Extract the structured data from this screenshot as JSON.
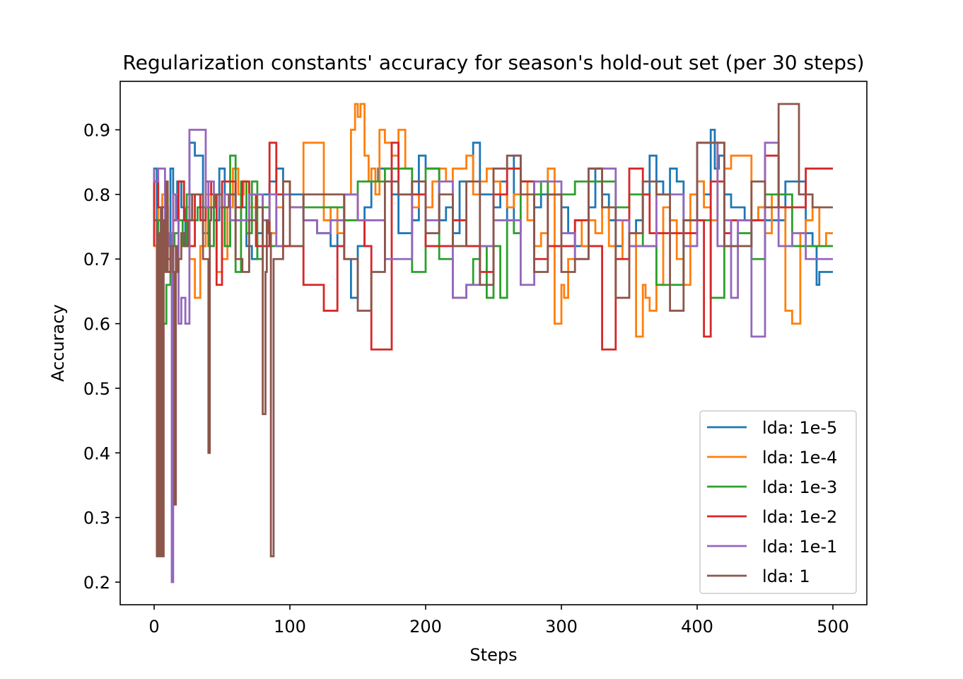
{
  "chart_data": {
    "type": "line",
    "title": "Regularization constants' accuracy for season's hold-out set (per 30 steps)",
    "xlabel": "Steps",
    "ylabel": "Accuracy",
    "xlim": [
      -25,
      525
    ],
    "ylim": [
      0.165,
      0.975
    ],
    "xticks": [
      0,
      100,
      200,
      300,
      400,
      500
    ],
    "yticks": [
      0.2,
      0.3,
      0.4,
      0.5,
      0.6,
      0.7,
      0.8,
      0.9
    ],
    "x_tick_labels": [
      "0",
      "100",
      "200",
      "300",
      "400",
      "500"
    ],
    "y_tick_labels": [
      "0.2",
      "0.3",
      "0.4",
      "0.5",
      "0.6",
      "0.7",
      "0.8",
      "0.9"
    ],
    "grid": false,
    "legend_position": "lower right",
    "series": [
      {
        "name": "lda: 1e-5",
        "color": "#1f77b4",
        "x": [
          0,
          2,
          5,
          8,
          10,
          12,
          14,
          17,
          20,
          23,
          26,
          30,
          32,
          36,
          40,
          44,
          48,
          52,
          56,
          60,
          64,
          68,
          72,
          76,
          80,
          85,
          90,
          95,
          100,
          110,
          120,
          130,
          135,
          140,
          145,
          150,
          155,
          160,
          165,
          170,
          175,
          180,
          185,
          190,
          195,
          200,
          205,
          210,
          215,
          220,
          225,
          230,
          235,
          240,
          245,
          250,
          255,
          260,
          265,
          270,
          275,
          280,
          285,
          290,
          295,
          300,
          305,
          310,
          315,
          320,
          325,
          330,
          335,
          340,
          345,
          350,
          355,
          360,
          365,
          370,
          375,
          380,
          385,
          390,
          395,
          400,
          405,
          410,
          413,
          416,
          420,
          425,
          430,
          435,
          440,
          445,
          450,
          455,
          460,
          465,
          470,
          475,
          480,
          485,
          488,
          490,
          495,
          500
        ],
        "values": [
          0.76,
          0.84,
          0.76,
          0.74,
          0.78,
          0.72,
          0.84,
          0.76,
          0.82,
          0.78,
          0.72,
          0.88,
          0.86,
          0.86,
          0.74,
          0.78,
          0.76,
          0.84,
          0.72,
          0.8,
          0.76,
          0.78,
          0.72,
          0.7,
          0.74,
          0.8,
          0.82,
          0.84,
          0.82,
          0.8,
          0.76,
          0.74,
          0.72,
          0.76,
          0.7,
          0.64,
          0.72,
          0.78,
          0.82,
          0.84,
          0.84,
          0.8,
          0.74,
          0.74,
          0.76,
          0.86,
          0.84,
          0.84,
          0.76,
          0.78,
          0.74,
          0.82,
          0.82,
          0.88,
          0.8,
          0.8,
          0.78,
          0.82,
          0.76,
          0.86,
          0.82,
          0.82,
          0.78,
          0.8,
          0.8,
          0.8,
          0.78,
          0.74,
          0.72,
          0.72,
          0.78,
          0.84,
          0.8,
          0.76,
          0.72,
          0.76,
          0.72,
          0.76,
          0.8,
          0.86,
          0.82,
          0.8,
          0.84,
          0.82,
          0.76,
          0.76,
          0.82,
          0.8,
          0.9,
          0.84,
          0.86,
          0.8,
          0.78,
          0.78,
          0.76,
          0.76,
          0.78,
          0.76,
          0.76,
          0.76,
          0.82,
          0.82,
          0.82,
          0.74,
          0.72,
          0.66,
          0.68,
          0.68
        ]
      },
      {
        "name": "lda: 1e-4",
        "color": "#ff7f0e",
        "x": [
          0,
          3,
          6,
          10,
          14,
          18,
          22,
          26,
          30,
          34,
          38,
          42,
          46,
          50,
          54,
          58,
          62,
          66,
          70,
          75,
          80,
          85,
          90,
          95,
          100,
          110,
          120,
          125,
          130,
          135,
          140,
          145,
          148,
          150,
          152,
          155,
          158,
          160,
          163,
          166,
          170,
          175,
          180,
          185,
          190,
          195,
          200,
          205,
          210,
          215,
          220,
          225,
          230,
          235,
          240,
          245,
          250,
          255,
          260,
          265,
          270,
          275,
          280,
          285,
          290,
          295,
          300,
          302,
          305,
          310,
          315,
          320,
          325,
          330,
          335,
          340,
          345,
          350,
          355,
          360,
          362,
          365,
          370,
          375,
          380,
          385,
          390,
          395,
          400,
          405,
          410,
          415,
          420,
          425,
          430,
          435,
          440,
          445,
          450,
          455,
          460,
          465,
          470,
          473,
          476,
          480,
          485,
          490,
          495,
          500
        ],
        "values": [
          0.76,
          0.72,
          0.78,
          0.8,
          0.72,
          0.8,
          0.82,
          0.78,
          0.7,
          0.64,
          0.72,
          0.8,
          0.78,
          0.68,
          0.7,
          0.78,
          0.84,
          0.8,
          0.82,
          0.78,
          0.8,
          0.76,
          0.74,
          0.78,
          0.82,
          0.78,
          0.88,
          0.88,
          0.76,
          0.78,
          0.74,
          0.8,
          0.9,
          0.94,
          0.92,
          0.94,
          0.86,
          0.82,
          0.84,
          0.8,
          0.9,
          0.88,
          0.86,
          0.9,
          0.84,
          0.78,
          0.8,
          0.78,
          0.82,
          0.84,
          0.82,
          0.84,
          0.84,
          0.86,
          0.8,
          0.82,
          0.84,
          0.82,
          0.8,
          0.78,
          0.8,
          0.82,
          0.76,
          0.72,
          0.74,
          0.84,
          0.6,
          0.66,
          0.64,
          0.7,
          0.76,
          0.72,
          0.76,
          0.74,
          0.78,
          0.72,
          0.7,
          0.76,
          0.74,
          0.58,
          0.66,
          0.64,
          0.62,
          0.66,
          0.78,
          0.76,
          0.7,
          0.66,
          0.8,
          0.82,
          0.78,
          0.76,
          0.88,
          0.84,
          0.86,
          0.86,
          0.86,
          0.76,
          0.78,
          0.74,
          0.8,
          0.78,
          0.62,
          0.6,
          0.6,
          0.74,
          0.76,
          0.78,
          0.72,
          0.74
        ]
      },
      {
        "name": "lda: 1e-3",
        "color": "#2ca02c",
        "x": [
          0,
          3,
          6,
          9,
          12,
          15,
          18,
          21,
          24,
          28,
          32,
          36,
          40,
          44,
          48,
          52,
          56,
          60,
          64,
          68,
          72,
          76,
          80,
          85,
          90,
          95,
          100,
          110,
          120,
          130,
          140,
          150,
          160,
          170,
          180,
          190,
          200,
          210,
          220,
          230,
          235,
          240,
          245,
          250,
          255,
          260,
          265,
          270,
          275,
          280,
          285,
          290,
          300,
          310,
          320,
          330,
          340,
          350,
          360,
          370,
          380,
          390,
          400,
          410,
          420,
          430,
          440,
          450,
          460,
          470,
          480,
          490,
          500
        ],
        "values": [
          0.84,
          0.76,
          0.72,
          0.6,
          0.66,
          0.72,
          0.74,
          0.76,
          0.72,
          0.8,
          0.76,
          0.78,
          0.78,
          0.72,
          0.8,
          0.78,
          0.72,
          0.86,
          0.68,
          0.82,
          0.74,
          0.82,
          0.7,
          0.78,
          0.72,
          0.72,
          0.8,
          0.78,
          0.78,
          0.78,
          0.78,
          0.76,
          0.82,
          0.82,
          0.84,
          0.84,
          0.68,
          0.84,
          0.7,
          0.64,
          0.66,
          0.7,
          0.72,
          0.64,
          0.72,
          0.64,
          0.76,
          0.74,
          0.82,
          0.82,
          0.8,
          0.82,
          0.8,
          0.8,
          0.82,
          0.82,
          0.82,
          0.78,
          0.8,
          0.72,
          0.66,
          0.66,
          0.76,
          0.76,
          0.64,
          0.72,
          0.74,
          0.7,
          0.8,
          0.8,
          0.72,
          0.72,
          0.72
        ]
      },
      {
        "name": "lda: 1e-2",
        "color": "#d62728",
        "x": [
          0,
          3,
          6,
          10,
          14,
          18,
          22,
          26,
          30,
          34,
          38,
          42,
          46,
          50,
          55,
          60,
          65,
          70,
          75,
          80,
          85,
          90,
          95,
          100,
          110,
          120,
          125,
          130,
          135,
          140,
          145,
          150,
          155,
          160,
          170,
          175,
          180,
          190,
          200,
          210,
          220,
          230,
          240,
          250,
          260,
          270,
          280,
          290,
          300,
          310,
          320,
          330,
          340,
          350,
          360,
          365,
          370,
          380,
          390,
          400,
          405,
          410,
          420,
          425,
          430,
          440,
          450,
          460,
          470,
          480,
          490,
          500
        ],
        "values": [
          0.72,
          0.82,
          0.78,
          0.78,
          0.7,
          0.76,
          0.82,
          0.76,
          0.72,
          0.8,
          0.76,
          0.82,
          0.8,
          0.66,
          0.82,
          0.82,
          0.78,
          0.82,
          0.8,
          0.72,
          0.72,
          0.88,
          0.8,
          0.72,
          0.72,
          0.66,
          0.66,
          0.62,
          0.62,
          0.72,
          0.8,
          0.8,
          0.76,
          0.72,
          0.56,
          0.56,
          0.88,
          0.8,
          0.8,
          0.72,
          0.72,
          0.76,
          0.72,
          0.68,
          0.8,
          0.84,
          0.82,
          0.7,
          0.72,
          0.72,
          0.76,
          0.72,
          0.56,
          0.7,
          0.84,
          0.8,
          0.74,
          0.74,
          0.74,
          0.74,
          0.76,
          0.58,
          0.82,
          0.74,
          0.76,
          0.76,
          0.76,
          0.86,
          0.78,
          0.78,
          0.84,
          0.84
        ]
      },
      {
        "name": "lda: 1e-1",
        "color": "#9467bd",
        "x": [
          0,
          3,
          5,
          8,
          11,
          13,
          14,
          16,
          18,
          20,
          23,
          26,
          30,
          34,
          38,
          40,
          44,
          48,
          52,
          56,
          60,
          65,
          70,
          75,
          80,
          85,
          90,
          95,
          100,
          110,
          120,
          130,
          140,
          150,
          160,
          170,
          180,
          190,
          200,
          210,
          220,
          230,
          240,
          250,
          260,
          270,
          280,
          290,
          300,
          310,
          320,
          330,
          340,
          350,
          360,
          370,
          380,
          390,
          400,
          410,
          415,
          420,
          425,
          430,
          440,
          450,
          460,
          470,
          480,
          490,
          500
        ],
        "values": [
          0.84,
          0.82,
          0.84,
          0.84,
          0.72,
          0.74,
          0.2,
          0.8,
          0.76,
          0.6,
          0.64,
          0.6,
          0.9,
          0.9,
          0.9,
          0.78,
          0.82,
          0.8,
          0.78,
          0.8,
          0.76,
          0.76,
          0.76,
          0.8,
          0.8,
          0.76,
          0.8,
          0.72,
          0.8,
          0.78,
          0.76,
          0.74,
          0.76,
          0.8,
          0.76,
          0.76,
          0.7,
          0.7,
          0.82,
          0.76,
          0.82,
          0.64,
          0.66,
          0.72,
          0.76,
          0.76,
          0.66,
          0.82,
          0.82,
          0.74,
          0.7,
          0.84,
          0.84,
          0.76,
          0.72,
          0.72,
          0.8,
          0.8,
          0.72,
          0.88,
          0.88,
          0.72,
          0.76,
          0.64,
          0.76,
          0.58,
          0.88,
          0.72,
          0.74,
          0.7,
          0.7
        ]
      },
      {
        "name": "lda: 1",
        "color": "#8c564b",
        "x": [
          0,
          2,
          3,
          4,
          5,
          6,
          7,
          8,
          9,
          10,
          12,
          14,
          15,
          16,
          17,
          18,
          20,
          22,
          25,
          28,
          30,
          33,
          36,
          40,
          41,
          42,
          43,
          45,
          50,
          55,
          60,
          65,
          70,
          75,
          80,
          82,
          83,
          84,
          86,
          88,
          89,
          90,
          95,
          100,
          110,
          120,
          130,
          140,
          150,
          160,
          170,
          180,
          190,
          200,
          210,
          220,
          230,
          240,
          250,
          260,
          270,
          280,
          290,
          300,
          310,
          320,
          330,
          340,
          350,
          360,
          370,
          380,
          390,
          400,
          410,
          420,
          430,
          440,
          450,
          460,
          470,
          475,
          480,
          485,
          490,
          500
        ],
        "values": [
          0.76,
          0.76,
          0.24,
          0.74,
          0.24,
          0.78,
          0.24,
          0.76,
          0.68,
          0.82,
          0.68,
          0.72,
          0.68,
          0.32,
          0.72,
          0.68,
          0.7,
          0.74,
          0.72,
          0.76,
          0.8,
          0.8,
          0.8,
          0.7,
          0.4,
          0.76,
          0.78,
          0.78,
          0.8,
          0.78,
          0.8,
          0.7,
          0.68,
          0.76,
          0.78,
          0.46,
          0.68,
          0.76,
          0.74,
          0.24,
          0.7,
          0.7,
          0.7,
          0.82,
          0.72,
          0.8,
          0.8,
          0.8,
          0.7,
          0.62,
          0.68,
          0.82,
          0.8,
          0.82,
          0.74,
          0.8,
          0.72,
          0.82,
          0.66,
          0.84,
          0.86,
          0.8,
          0.68,
          0.8,
          0.68,
          0.7,
          0.84,
          0.78,
          0.64,
          0.74,
          0.82,
          0.8,
          0.62,
          0.76,
          0.88,
          0.88,
          0.72,
          0.72,
          0.82,
          0.78,
          0.94,
          0.94,
          0.8,
          0.8,
          0.78,
          0.78
        ]
      }
    ]
  }
}
